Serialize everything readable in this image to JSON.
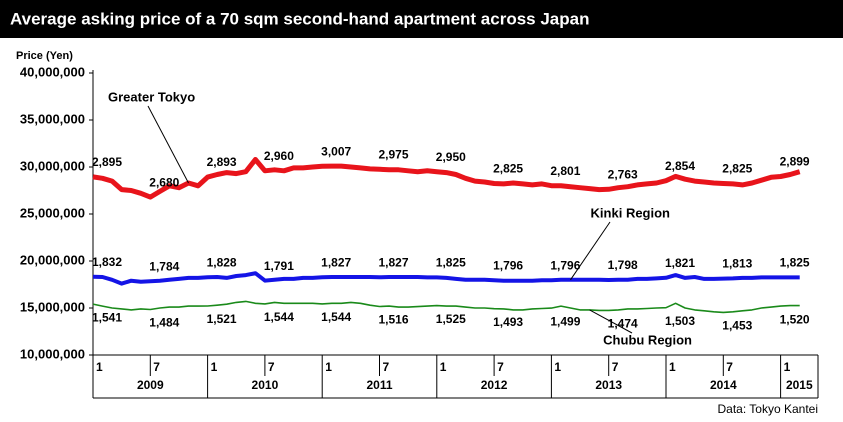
{
  "chart_data": {
    "type": "line",
    "title": "Average asking price of a 70 sqm second-hand apartment across Japan",
    "y_label": "Price (Yen)",
    "source": "Data: Tokyo Kantei",
    "categories": [
      "1",
      null,
      null,
      null,
      null,
      null,
      "7",
      null,
      null,
      null,
      null,
      null,
      "1",
      null,
      null,
      null,
      null,
      null,
      "7",
      null,
      null,
      null,
      null,
      null,
      "1",
      null,
      null,
      null,
      null,
      null,
      "7",
      null,
      null,
      null,
      null,
      null,
      "1",
      null,
      null,
      null,
      null,
      null,
      "7",
      null,
      null,
      null,
      null,
      null,
      "1",
      null,
      null,
      null,
      null,
      null,
      "7",
      null,
      null,
      null,
      null,
      null,
      "1",
      null,
      null,
      null,
      null,
      null,
      "7",
      null,
      null,
      null,
      null,
      null,
      "1",
      null,
      null
    ],
    "years": [
      "2009",
      "2010",
      "2011",
      "2012",
      "2013",
      "2014",
      "2015"
    ],
    "ylim": [
      10000000,
      40000000
    ],
    "yticks": [
      {
        "value": 10000000,
        "label": "10,000,000"
      },
      {
        "value": 15000000,
        "label": "15,000,000"
      },
      {
        "value": 20000000,
        "label": "20,000,000"
      },
      {
        "value": 25000000,
        "label": "25,000,000"
      },
      {
        "value": 30000000,
        "label": "30,000,000"
      },
      {
        "value": 35000000,
        "label": "35,000,000"
      },
      {
        "value": 40000000,
        "label": "40,000,000"
      }
    ],
    "series": [
      {
        "name": "Greater Tokyo",
        "color": "#e8141b",
        "values": [
          28950000,
          28800000,
          28500000,
          27600000,
          27500000,
          27200000,
          26800000,
          27400000,
          28000000,
          27800000,
          28300000,
          28000000,
          28930000,
          29200000,
          29400000,
          29300000,
          29500000,
          30800000,
          29600000,
          29700000,
          29600000,
          29900000,
          29900000,
          30000000,
          30070000,
          30100000,
          30100000,
          30000000,
          29900000,
          29800000,
          29750000,
          29700000,
          29700000,
          29600000,
          29500000,
          29600000,
          29500000,
          29400000,
          29200000,
          28800000,
          28500000,
          28400000,
          28250000,
          28200000,
          28300000,
          28200000,
          28100000,
          28200000,
          28010000,
          28000000,
          27900000,
          27800000,
          27700000,
          27600000,
          27630000,
          27800000,
          27900000,
          28100000,
          28200000,
          28300000,
          28540000,
          29000000,
          28700000,
          28500000,
          28400000,
          28300000,
          28250000,
          28200000,
          28100000,
          28300000,
          28600000,
          28900000,
          28990000,
          29200000,
          29500000
        ],
        "value_labels": [
          "2,895",
          null,
          null,
          null,
          null,
          null,
          "2,680",
          null,
          null,
          null,
          null,
          null,
          "2,893",
          null,
          null,
          null,
          null,
          null,
          "2,960",
          null,
          null,
          null,
          null,
          null,
          "3,007",
          null,
          null,
          null,
          null,
          null,
          "2,975",
          null,
          null,
          null,
          null,
          null,
          "2,950",
          null,
          null,
          null,
          null,
          null,
          "2,825",
          null,
          null,
          null,
          null,
          null,
          "2,801",
          null,
          null,
          null,
          null,
          null,
          "2,763",
          null,
          null,
          null,
          null,
          null,
          "2,854",
          null,
          null,
          null,
          null,
          null,
          "2,825",
          null,
          null,
          null,
          null,
          null,
          "2,899",
          null,
          null
        ]
      },
      {
        "name": "Kinki Region",
        "color": "#1414e6",
        "values": [
          18320000,
          18300000,
          18000000,
          17600000,
          17900000,
          17800000,
          17840000,
          17900000,
          18000000,
          18100000,
          18200000,
          18200000,
          18280000,
          18300000,
          18200000,
          18400000,
          18500000,
          18700000,
          17910000,
          18000000,
          18100000,
          18100000,
          18200000,
          18200000,
          18270000,
          18300000,
          18300000,
          18300000,
          18300000,
          18300000,
          18270000,
          18300000,
          18300000,
          18300000,
          18300000,
          18250000,
          18250000,
          18200000,
          18100000,
          18000000,
          18000000,
          18000000,
          17960000,
          17900000,
          17900000,
          17900000,
          17900000,
          17950000,
          17960000,
          18000000,
          18000000,
          18000000,
          18000000,
          18000000,
          17980000,
          18000000,
          18000000,
          18100000,
          18100000,
          18150000,
          18210000,
          18500000,
          18200000,
          18300000,
          18100000,
          18100000,
          18130000,
          18150000,
          18200000,
          18200000,
          18250000,
          18250000,
          18250000,
          18250000,
          18250000
        ],
        "value_labels": [
          "1,832",
          null,
          null,
          null,
          null,
          null,
          "1,784",
          null,
          null,
          null,
          null,
          null,
          "1,828",
          null,
          null,
          null,
          null,
          null,
          "1,791",
          null,
          null,
          null,
          null,
          null,
          "1,827",
          null,
          null,
          null,
          null,
          null,
          "1,827",
          null,
          null,
          null,
          null,
          null,
          "1,825",
          null,
          null,
          null,
          null,
          null,
          "1,796",
          null,
          null,
          null,
          null,
          null,
          "1,796",
          null,
          null,
          null,
          null,
          null,
          "1,798",
          null,
          null,
          null,
          null,
          null,
          "1,821",
          null,
          null,
          null,
          null,
          null,
          "1,813",
          null,
          null,
          null,
          null,
          null,
          "1,825",
          null,
          null
        ]
      },
      {
        "name": "Chubu Region",
        "color": "#1a8a1a",
        "values": [
          15410000,
          15200000,
          15000000,
          14900000,
          14800000,
          14900000,
          14840000,
          15000000,
          15100000,
          15100000,
          15200000,
          15200000,
          15210000,
          15300000,
          15400000,
          15600000,
          15700000,
          15500000,
          15440000,
          15600000,
          15500000,
          15500000,
          15500000,
          15500000,
          15440000,
          15500000,
          15500000,
          15600000,
          15500000,
          15300000,
          15160000,
          15200000,
          15100000,
          15100000,
          15150000,
          15200000,
          15250000,
          15200000,
          15200000,
          15100000,
          15000000,
          15000000,
          14930000,
          14900000,
          14800000,
          14800000,
          14900000,
          14950000,
          14990000,
          15200000,
          15000000,
          14800000,
          14800000,
          14750000,
          14740000,
          14800000,
          14900000,
          14900000,
          14950000,
          15000000,
          15030000,
          15500000,
          15000000,
          14800000,
          14700000,
          14600000,
          14530000,
          14600000,
          14700000,
          14800000,
          15000000,
          15100000,
          15200000,
          15250000,
          15250000
        ],
        "value_labels": [
          "1,541",
          null,
          null,
          null,
          null,
          null,
          "1,484",
          null,
          null,
          null,
          null,
          null,
          "1,521",
          null,
          null,
          null,
          null,
          null,
          "1,544",
          null,
          null,
          null,
          null,
          null,
          "1,544",
          null,
          null,
          null,
          null,
          null,
          "1,516",
          null,
          null,
          null,
          null,
          null,
          "1,525",
          null,
          null,
          null,
          null,
          null,
          "1,493",
          null,
          null,
          null,
          null,
          null,
          "1,499",
          null,
          null,
          null,
          null,
          null,
          "1,474",
          null,
          null,
          null,
          null,
          null,
          "1,503",
          null,
          null,
          null,
          null,
          null,
          "1,453",
          null,
          null,
          null,
          null,
          null,
          "1,520",
          null,
          null
        ]
      }
    ]
  }
}
